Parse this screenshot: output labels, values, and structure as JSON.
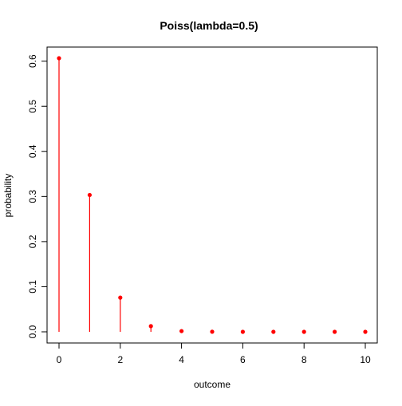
{
  "chart_data": {
    "type": "scatter",
    "title": "Poiss(lambda=0.5)",
    "xlabel": "outcome",
    "ylabel": "probability",
    "x": [
      0,
      1,
      2,
      3,
      4,
      5,
      6,
      7,
      8,
      9,
      10
    ],
    "y": [
      0.6065,
      0.3033,
      0.0758,
      0.0126,
      0.0016,
      0.0002,
      0.0,
      0.0,
      0.0,
      0.0,
      0.0
    ],
    "xlim": [
      0,
      10
    ],
    "ylim": [
      0,
      0.6065
    ],
    "x_ticks": [
      "0",
      "2",
      "4",
      "6",
      "8",
      "10"
    ],
    "y_ticks": [
      "0.0",
      "0.1",
      "0.2",
      "0.3",
      "0.4",
      "0.5",
      "0.6"
    ],
    "x_tick_values": [
      0,
      2,
      4,
      6,
      8,
      10
    ],
    "y_tick_values": [
      0,
      0.1,
      0.2,
      0.3,
      0.4,
      0.5,
      0.6
    ],
    "series_color": "#ff0000",
    "style": "vertical lines with point markers",
    "grid": false,
    "legend": "none"
  }
}
